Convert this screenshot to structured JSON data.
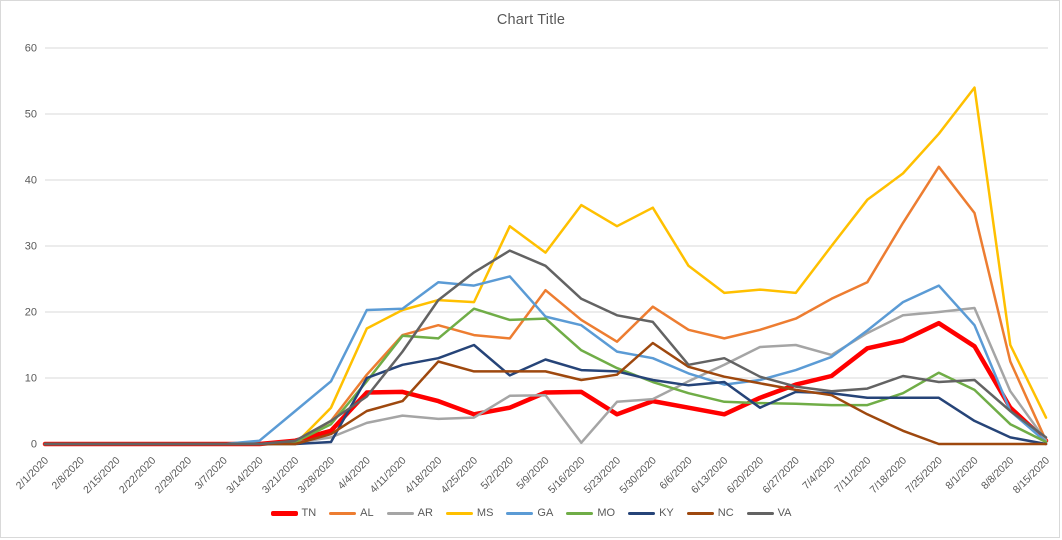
{
  "chart_data": {
    "type": "line",
    "title": "Chart Title",
    "xlabel": "",
    "ylabel": "",
    "ylim": [
      0,
      60
    ],
    "yticks": [
      0,
      10,
      20,
      30,
      40,
      50,
      60
    ],
    "grid": "horizontal",
    "legend_position": "bottom",
    "axis_text_color": "#595959",
    "gridline_color": "#d9d9d9",
    "categories": [
      "2/1/2020",
      "2/8/2020",
      "2/15/2020",
      "2/22/2020",
      "2/29/2020",
      "3/7/2020",
      "3/14/2020",
      "3/21/2020",
      "3/28/2020",
      "4/4/2020",
      "4/11/2020",
      "4/18/2020",
      "4/25/2020",
      "5/2/2020",
      "5/9/2020",
      "5/16/2020",
      "5/23/2020",
      "5/30/2020",
      "6/6/2020",
      "6/13/2020",
      "6/20/2020",
      "6/27/2020",
      "7/4/2020",
      "7/11/2020",
      "7/18/2020",
      "7/25/2020",
      "8/1/2020",
      "8/8/2020",
      "8/15/2020"
    ],
    "series": [
      {
        "name": "TN",
        "color": "#ff0000",
        "width": 4.5,
        "values": [
          0,
          0,
          0,
          0,
          0,
          0,
          0,
          0.5,
          2,
          7.8,
          7.9,
          6.5,
          4.5,
          5.5,
          7.8,
          7.9,
          4.5,
          6.5,
          5.5,
          4.5,
          7,
          9,
          10.3,
          14.5,
          15.7,
          18.3,
          14.8,
          5.5,
          0.5
        ]
      },
      {
        "name": "AL",
        "color": "#ed7d31",
        "width": 2.5,
        "values": [
          0,
          0,
          0,
          0,
          0,
          0,
          0,
          0.3,
          3.5,
          10.5,
          16.5,
          18,
          16.5,
          16,
          23.3,
          18.8,
          15.5,
          20.8,
          17.3,
          16,
          17.3,
          19,
          22,
          24.5,
          33.5,
          42,
          35,
          12.5,
          0.5
        ]
      },
      {
        "name": "AR",
        "color": "#a5a5a5",
        "width": 2.5,
        "values": [
          0,
          0,
          0,
          0,
          0,
          0,
          0,
          0.2,
          1,
          3.2,
          4.3,
          3.8,
          4,
          7.3,
          7.4,
          0.2,
          6.4,
          6.8,
          9.5,
          12,
          14.7,
          15,
          13.5,
          16.8,
          19.5,
          20,
          20.6,
          8,
          0.5
        ]
      },
      {
        "name": "MS",
        "color": "#ffc000",
        "width": 2.5,
        "values": [
          0,
          0,
          0,
          0,
          0,
          0,
          0,
          0,
          5.5,
          17.5,
          20.3,
          21.8,
          21.5,
          33,
          29,
          36.2,
          33,
          35.8,
          27,
          22.9,
          23.4,
          22.9,
          30,
          37,
          41,
          47,
          54,
          15,
          4
        ]
      },
      {
        "name": "GA",
        "color": "#5b9bd5",
        "width": 2.5,
        "values": [
          0,
          0,
          0,
          0,
          0,
          0,
          0.5,
          5,
          9.5,
          20.3,
          20.5,
          24.5,
          24,
          25.4,
          19.3,
          18,
          14,
          13,
          10.7,
          9,
          9.7,
          11.2,
          13.2,
          17.2,
          21.5,
          24,
          18,
          5,
          0.3
        ]
      },
      {
        "name": "MO",
        "color": "#70ad47",
        "width": 2.5,
        "values": [
          0,
          0,
          0,
          0,
          0,
          0,
          0,
          0.3,
          3,
          9.5,
          16.4,
          16,
          20.5,
          18.8,
          19,
          14.2,
          11.5,
          9.4,
          7.7,
          6.4,
          6.2,
          6.1,
          5.9,
          5.9,
          7.7,
          10.8,
          8.2,
          3,
          0.3
        ]
      },
      {
        "name": "KY",
        "color": "#264478",
        "width": 2.5,
        "values": [
          0,
          0,
          0,
          0,
          0,
          0,
          0,
          0,
          0.3,
          10,
          12,
          13,
          15,
          10.4,
          12.8,
          11.2,
          11,
          9.7,
          8.9,
          9.4,
          5.5,
          7.9,
          7.7,
          7,
          7,
          7,
          3.5,
          1,
          0
        ]
      },
      {
        "name": "NC",
        "color": "#9e480e",
        "width": 2.5,
        "values": [
          0,
          0,
          0,
          0,
          0,
          0,
          0,
          0,
          1.5,
          5,
          6.5,
          12.5,
          11,
          11,
          11,
          9.7,
          10.5,
          15.3,
          11.7,
          10.2,
          9.2,
          8.2,
          7.4,
          4.5,
          2,
          0,
          0,
          0,
          0
        ]
      },
      {
        "name": "VA",
        "color": "#636363",
        "width": 2.5,
        "values": [
          0,
          0,
          0,
          0,
          0,
          0,
          0,
          0.5,
          3.5,
          7.2,
          14,
          21.8,
          26,
          29.3,
          27,
          22,
          19.5,
          18.5,
          12,
          13,
          10.2,
          8.7,
          8,
          8.4,
          10.3,
          9.4,
          9.7,
          5,
          1
        ]
      }
    ]
  }
}
